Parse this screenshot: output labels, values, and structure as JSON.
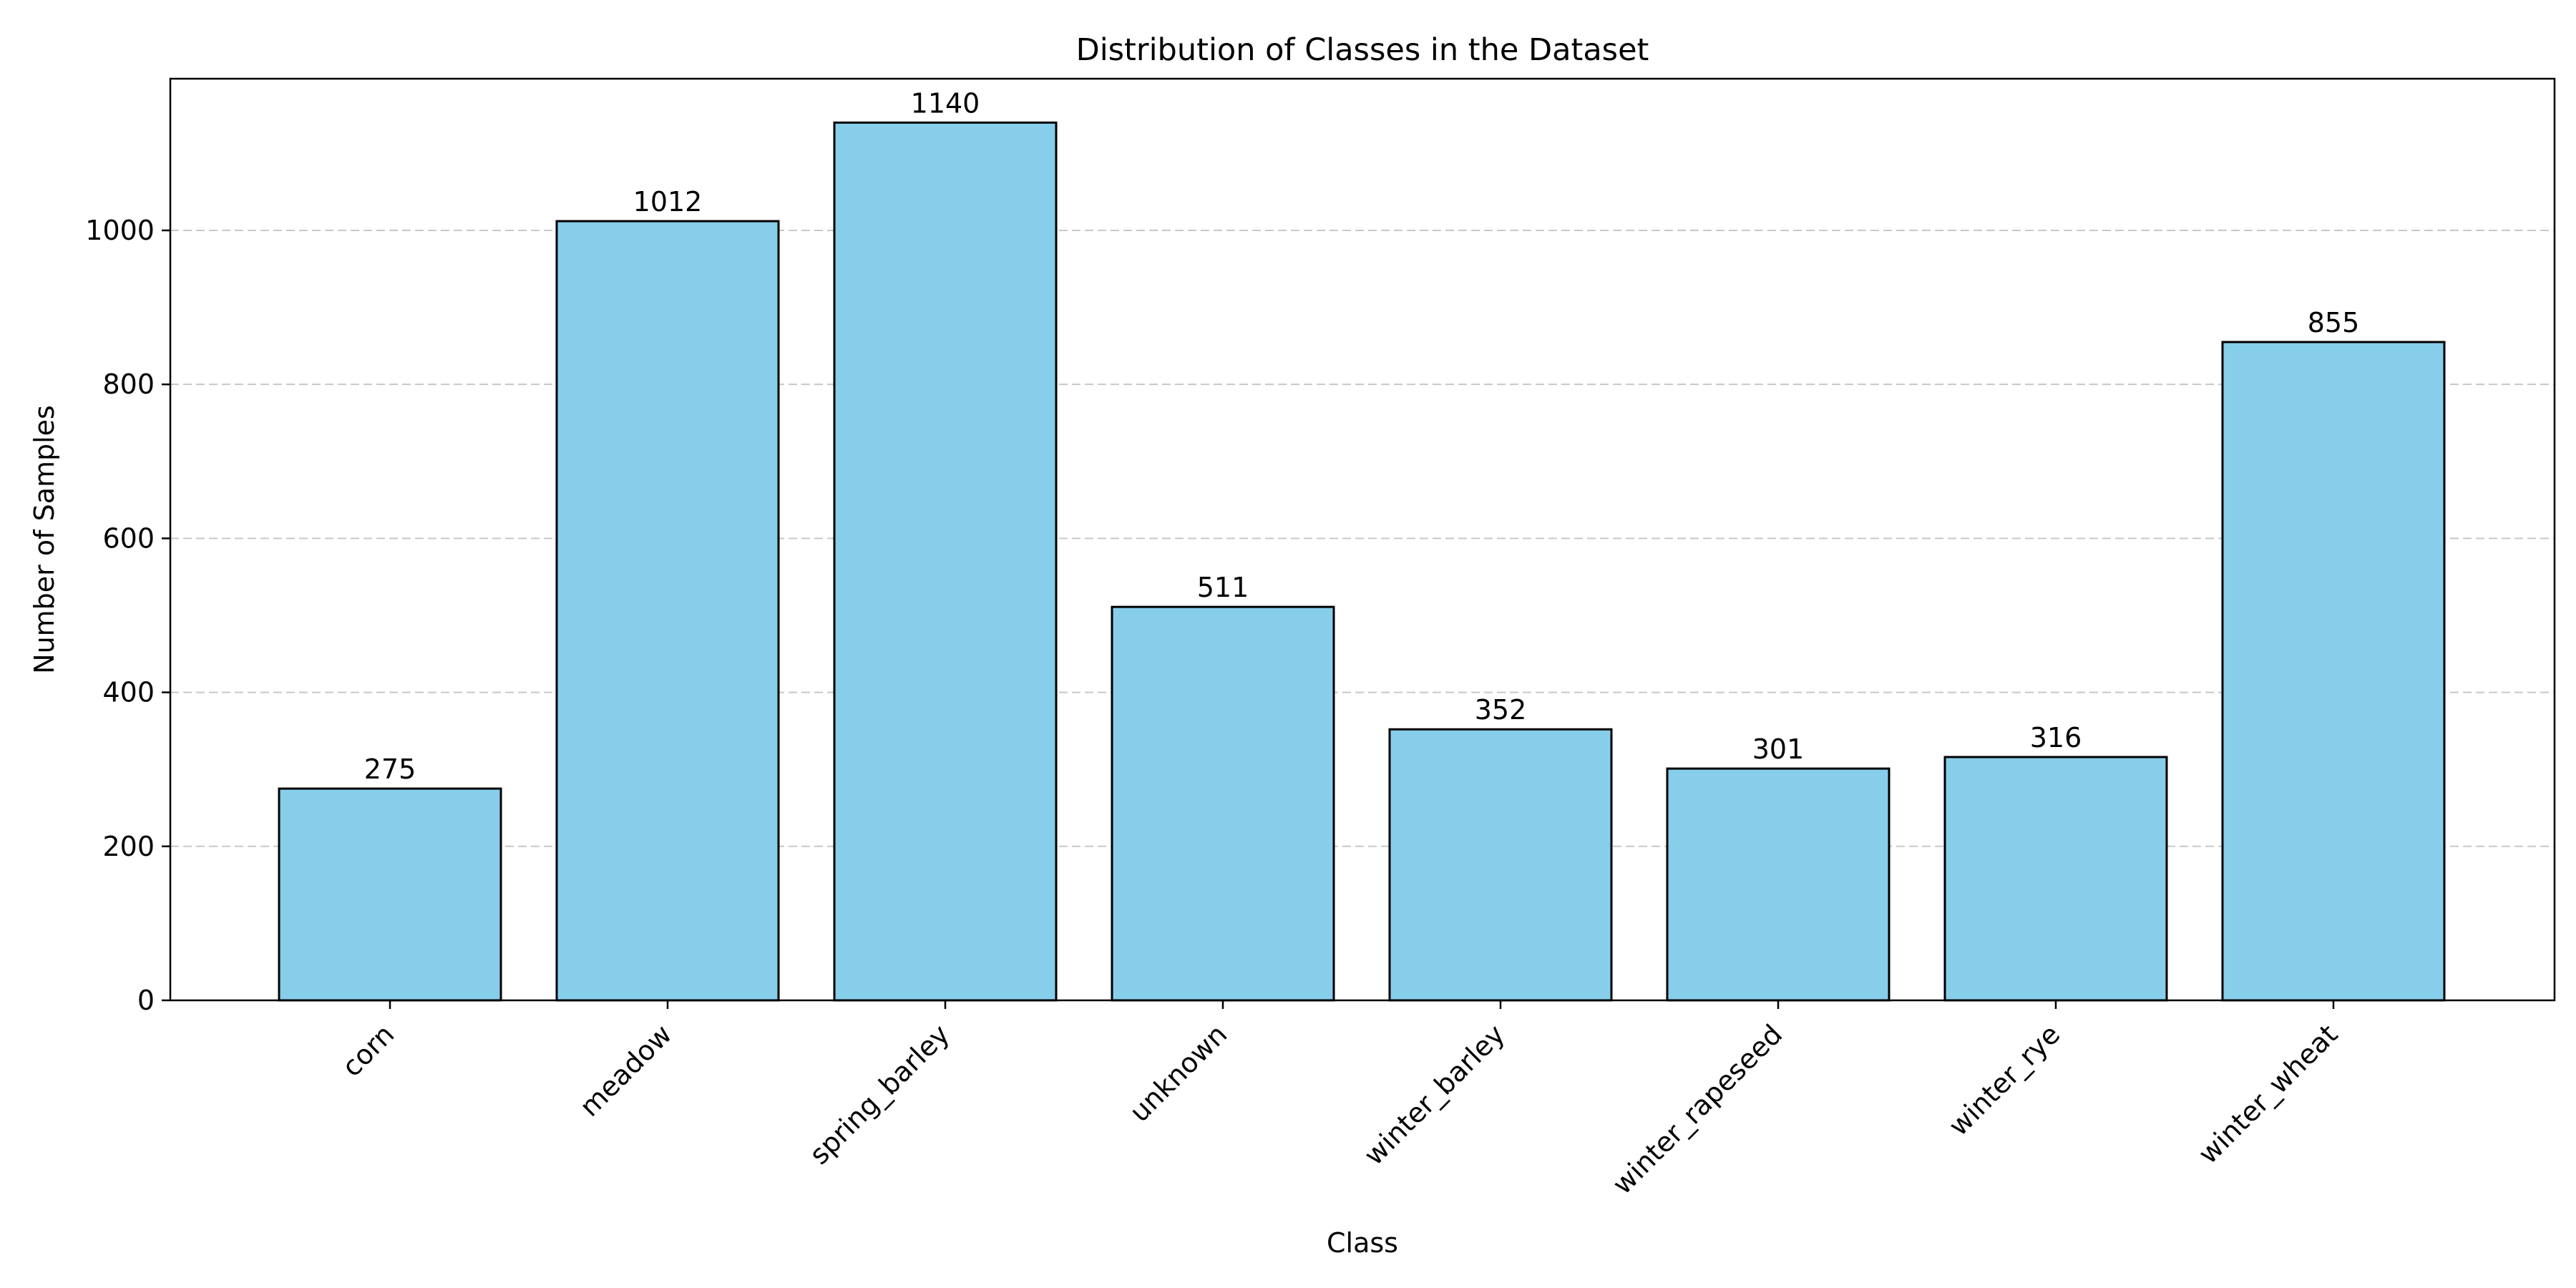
{
  "chart_data": {
    "type": "bar",
    "title": "Distribution of Classes in the Dataset",
    "xlabel": "Class",
    "ylabel": "Number of Samples",
    "categories": [
      "corn",
      "meadow",
      "spring_barley",
      "unknown",
      "winter_barley",
      "winter_rapeseed",
      "winter_rye",
      "winter_wheat"
    ],
    "values": [
      275,
      1012,
      1140,
      511,
      352,
      301,
      316,
      855
    ],
    "ylim": [
      0,
      1197
    ],
    "yticks": [
      0,
      200,
      400,
      600,
      800,
      1000
    ],
    "grid": "y-dashed",
    "bar_color": "#87CEEB",
    "edge_color": "#000000",
    "grid_color": "#c8c8c8"
  }
}
